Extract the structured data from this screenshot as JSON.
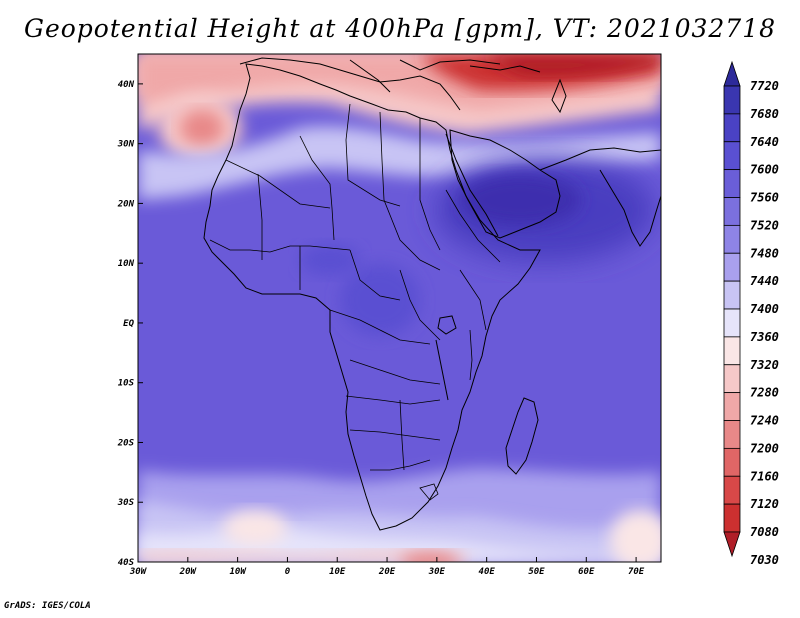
{
  "title": "Geopotential Height at 400hPa [gpm], VT: 2021032718",
  "credit": "GrADS: IGES/COLA",
  "map": {
    "lon_labels": [
      "30W",
      "20W",
      "10W",
      "0",
      "10E",
      "20E",
      "30E",
      "40E",
      "50E",
      "60E",
      "70E"
    ],
    "lon_values": [
      -30,
      -20,
      -10,
      0,
      10,
      20,
      30,
      40,
      50,
      60,
      70
    ],
    "lat_labels": [
      "40N",
      "30N",
      "20N",
      "10N",
      "EQ",
      "10S",
      "20S",
      "30S",
      "40S"
    ],
    "lat_values": [
      40,
      30,
      20,
      10,
      0,
      -10,
      -20,
      -30,
      -40
    ],
    "lon_range": [
      -30,
      75
    ],
    "lat_range": [
      -40,
      45
    ],
    "colors": {
      "background_fill": "#6a5ad8",
      "high_fill": "#4a3cc0",
      "high_core": "#3c2eae",
      "low_fill": "#f6b8b8",
      "low_core": "#e88888",
      "very_low": "#c43040",
      "boundary": "#000000"
    }
  },
  "colorbar": {
    "levels": [
      "7720",
      "7680",
      "7640",
      "7600",
      "7560",
      "7520",
      "7480",
      "7440",
      "7400",
      "7360",
      "7320",
      "7280",
      "7240",
      "7200",
      "7160",
      "7120",
      "7080",
      "7030"
    ],
    "colors": [
      "#2d2a9a",
      "#3a36b0",
      "#4a42c4",
      "#5a50d2",
      "#6a5ed8",
      "#7b70de",
      "#8e84e6",
      "#a9a0ee",
      "#c8c4f4",
      "#e6e4fa",
      "#fae6e6",
      "#f6c8c8",
      "#f0a8a8",
      "#e88888",
      "#e06666",
      "#d84848",
      "#cc3030",
      "#b01e28"
    ]
  }
}
